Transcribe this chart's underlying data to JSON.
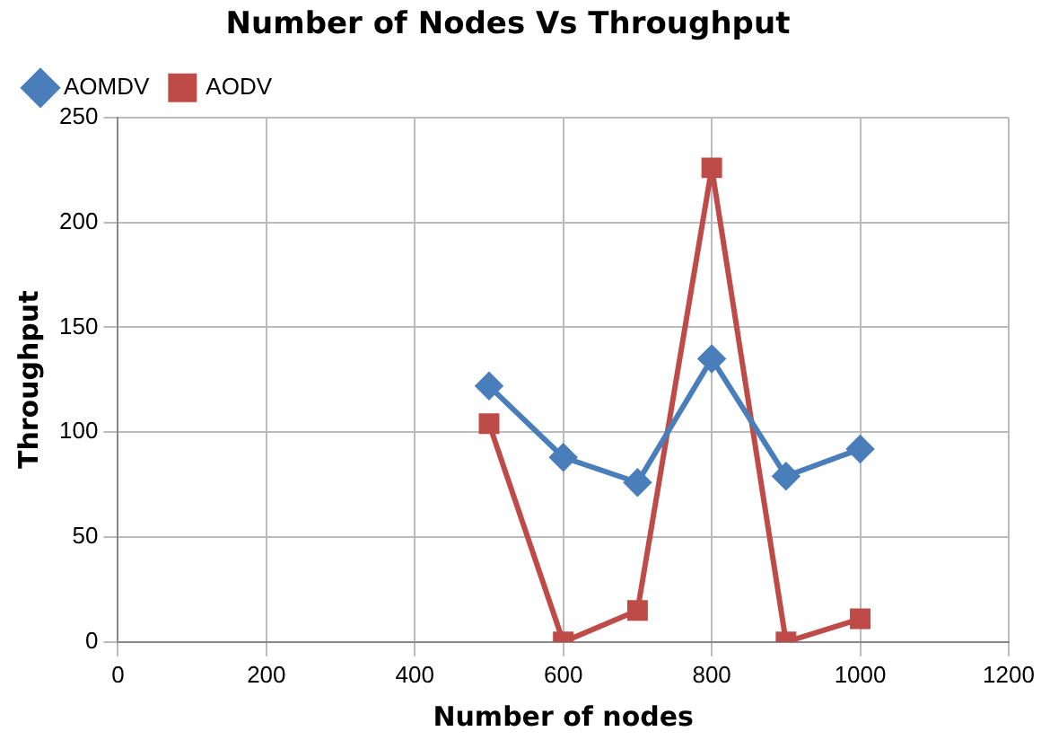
{
  "chart_data": {
    "type": "line",
    "title": "Number of Nodes Vs Throughput",
    "xlabel": "Number of nodes",
    "ylabel": "Throughput",
    "x": [
      500,
      600,
      700,
      800,
      900,
      1000
    ],
    "series": [
      {
        "name": "AOMDV",
        "color": "#4a7ebb",
        "marker": "diamond",
        "values": [
          122,
          88,
          76,
          135,
          79,
          92
        ]
      },
      {
        "name": "AODV",
        "color": "#be4b48",
        "marker": "square",
        "values": [
          104,
          0,
          15,
          226,
          0,
          11
        ]
      }
    ],
    "xlim": [
      0,
      1200
    ],
    "xticks": [
      0,
      200,
      400,
      600,
      800,
      1000,
      1200
    ],
    "ylim": [
      0,
      250
    ],
    "yticks": [
      0,
      50,
      100,
      150,
      200,
      250
    ],
    "grid": true,
    "legend": "top left",
    "line_style": "solid"
  }
}
